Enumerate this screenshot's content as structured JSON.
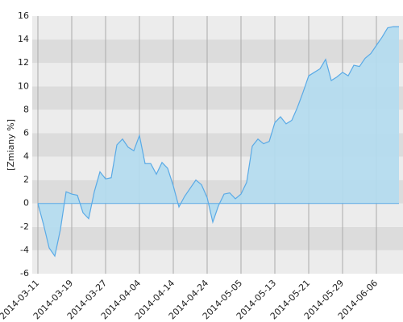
{
  "chart_data": {
    "type": "area",
    "y_label": "[Zmiany %]",
    "categories": [
      "2014-03-11",
      null,
      null,
      null,
      null,
      null,
      "2014-03-19",
      null,
      null,
      null,
      null,
      null,
      "2014-03-27",
      null,
      null,
      null,
      null,
      null,
      "2014-04-04",
      null,
      null,
      null,
      null,
      null,
      "2014-04-14",
      null,
      null,
      null,
      null,
      null,
      "2014-04-24",
      null,
      null,
      null,
      null,
      null,
      "2014-05-05",
      null,
      null,
      null,
      null,
      null,
      "2014-05-13",
      null,
      null,
      null,
      null,
      null,
      "2014-05-21",
      null,
      null,
      null,
      null,
      null,
      "2014-05-29",
      null,
      null,
      null,
      null,
      null,
      "2014-06-06",
      null,
      null,
      null,
      null
    ],
    "values": [
      0,
      -1.8,
      -3.8,
      -4.5,
      -2.2,
      1.0,
      0.8,
      0.7,
      -0.8,
      -1.3,
      1.0,
      2.7,
      2.1,
      2.2,
      5.0,
      5.5,
      4.8,
      4.5,
      5.8,
      3.4,
      3.4,
      2.5,
      3.5,
      3.0,
      1.5,
      -0.3,
      0.6,
      1.3,
      2.0,
      1.6,
      0.5,
      -1.6,
      -0.2,
      0.8,
      0.9,
      0.4,
      0.8,
      1.8,
      4.9,
      5.5,
      5.1,
      5.3,
      6.9,
      7.4,
      6.8,
      7.1,
      8.2,
      9.5,
      10.9,
      11.2,
      11.5,
      12.3,
      10.5,
      10.8,
      11.2,
      10.9,
      11.8,
      11.7,
      12.4,
      12.8,
      13.5,
      14.2,
      15.0,
      15.1,
      15.1
    ],
    "line_color": "#5aaae6",
    "fill_color": "#b3dcef",
    "ylim": [
      -6,
      16
    ],
    "yticks": [
      -6,
      -4,
      -2,
      0,
      2,
      4,
      6,
      8,
      10,
      12,
      14,
      16
    ],
    "grid": true
  }
}
